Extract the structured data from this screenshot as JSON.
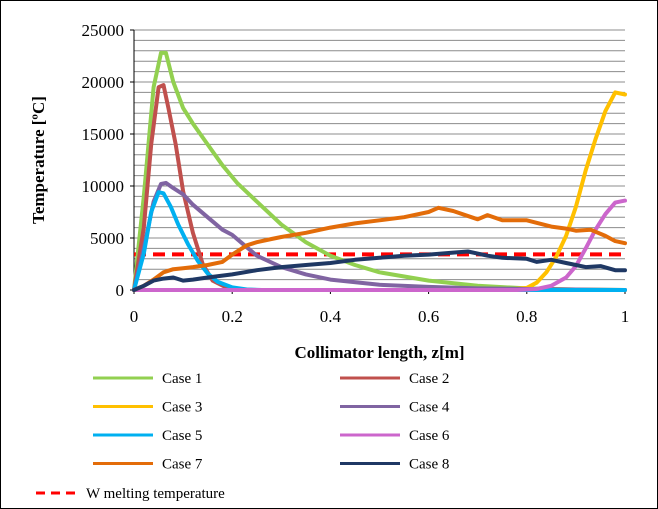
{
  "chart_data": {
    "type": "line",
    "title": "",
    "xlabel": "Collimator length, z[m]",
    "ylabel": "Temperature  [ºC]",
    "xlim": [
      0,
      1
    ],
    "ylim": [
      0,
      25000
    ],
    "x_ticks": [
      "0",
      "0.2",
      "0.4",
      "0.6",
      "0.8",
      "1"
    ],
    "y_ticks": [
      "0",
      "5000",
      "10000",
      "15000",
      "20000",
      "25000"
    ],
    "grid": "horizontal",
    "legend_placement": "bottom",
    "series": [
      {
        "name": "Case 1",
        "color": "#92D050",
        "x": [
          0,
          0.02,
          0.04,
          0.055,
          0.065,
          0.08,
          0.1,
          0.12,
          0.15,
          0.18,
          0.21,
          0.25,
          0.3,
          0.35,
          0.4,
          0.45,
          0.5,
          0.6,
          0.7,
          0.8,
          0.9,
          1.0
        ],
        "y": [
          0,
          9000,
          19500,
          22800,
          22800,
          20000,
          17500,
          16000,
          14000,
          12000,
          10300,
          8500,
          6300,
          4600,
          3300,
          2400,
          1700,
          900,
          400,
          150,
          50,
          0
        ]
      },
      {
        "name": "Case 2",
        "color": "#C0504D",
        "x": [
          0,
          0.02,
          0.035,
          0.05,
          0.06,
          0.07,
          0.085,
          0.1,
          0.12,
          0.14,
          0.16,
          0.19,
          0.22,
          0.25,
          0.3,
          1.0
        ],
        "y": [
          0,
          6000,
          14000,
          19500,
          19700,
          17500,
          14000,
          9500,
          5500,
          2500,
          900,
          200,
          50,
          0,
          0,
          0
        ]
      },
      {
        "name": "Case 3",
        "color": "#FFC000",
        "x": [
          0,
          0.75,
          0.8,
          0.82,
          0.84,
          0.86,
          0.88,
          0.9,
          0.92,
          0.94,
          0.96,
          0.98,
          1.0
        ],
        "y": [
          0,
          0,
          200,
          700,
          1700,
          3200,
          5200,
          8000,
          11500,
          14500,
          17200,
          19000,
          18800
        ]
      },
      {
        "name": "Case 4",
        "color": "#8064A2",
        "x": [
          0,
          0.02,
          0.04,
          0.055,
          0.065,
          0.08,
          0.1,
          0.12,
          0.15,
          0.18,
          0.2,
          0.22,
          0.25,
          0.3,
          0.35,
          0.4,
          0.5,
          0.6,
          0.7,
          0.8,
          1.0
        ],
        "y": [
          0,
          4000,
          8500,
          10200,
          10300,
          9800,
          9200,
          8200,
          7000,
          5800,
          5300,
          4500,
          3300,
          2200,
          1500,
          1000,
          500,
          300,
          150,
          100,
          0
        ]
      },
      {
        "name": "Case 5",
        "color": "#00B0F0",
        "x": [
          0,
          0.02,
          0.035,
          0.05,
          0.06,
          0.075,
          0.09,
          0.11,
          0.13,
          0.15,
          0.17,
          0.2,
          0.23,
          0.26,
          1.0
        ],
        "y": [
          0,
          3500,
          7500,
          9400,
          9300,
          8000,
          6300,
          4400,
          2800,
          1600,
          800,
          250,
          50,
          0,
          0
        ]
      },
      {
        "name": "Case 6",
        "color": "#CC66CC",
        "x": [
          0,
          0.78,
          0.82,
          0.85,
          0.88,
          0.9,
          0.92,
          0.94,
          0.96,
          0.98,
          1.0
        ],
        "y": [
          0,
          0,
          100,
          400,
          1200,
          2300,
          4000,
          5800,
          7300,
          8400,
          8600
        ]
      },
      {
        "name": "Case 7",
        "color": "#E36C09",
        "x": [
          0,
          0.02,
          0.04,
          0.06,
          0.08,
          0.1,
          0.12,
          0.15,
          0.18,
          0.2,
          0.23,
          0.25,
          0.28,
          0.3,
          0.35,
          0.4,
          0.45,
          0.5,
          0.55,
          0.6,
          0.62,
          0.65,
          0.7,
          0.72,
          0.75,
          0.8,
          0.85,
          0.88,
          0.9,
          0.93,
          0.96,
          0.98,
          1.0
        ],
        "y": [
          0,
          400,
          1000,
          1700,
          2000,
          2100,
          2200,
          2400,
          2700,
          3400,
          4300,
          4600,
          4900,
          5100,
          5500,
          6000,
          6400,
          6700,
          7000,
          7500,
          7900,
          7600,
          6800,
          7200,
          6700,
          6700,
          6100,
          5900,
          5700,
          5800,
          5200,
          4700,
          4500
        ]
      },
      {
        "name": "Case 8",
        "color": "#1F3864",
        "x": [
          0,
          0.02,
          0.04,
          0.06,
          0.08,
          0.1,
          0.12,
          0.15,
          0.2,
          0.25,
          0.3,
          0.35,
          0.4,
          0.45,
          0.5,
          0.55,
          0.6,
          0.65,
          0.68,
          0.72,
          0.75,
          0.8,
          0.82,
          0.85,
          0.88,
          0.9,
          0.92,
          0.95,
          0.98,
          1.0
        ],
        "y": [
          0,
          400,
          900,
          1100,
          1200,
          900,
          1000,
          1200,
          1500,
          1900,
          2200,
          2400,
          2600,
          2900,
          3100,
          3300,
          3400,
          3600,
          3700,
          3300,
          3100,
          3000,
          2700,
          2900,
          2600,
          2400,
          2200,
          2300,
          1900,
          1900
        ]
      },
      {
        "name": "W melting temperature",
        "color": "#FF0000",
        "dashed": true,
        "x": [
          0,
          1
        ],
        "y": [
          3422,
          3422
        ]
      }
    ]
  }
}
